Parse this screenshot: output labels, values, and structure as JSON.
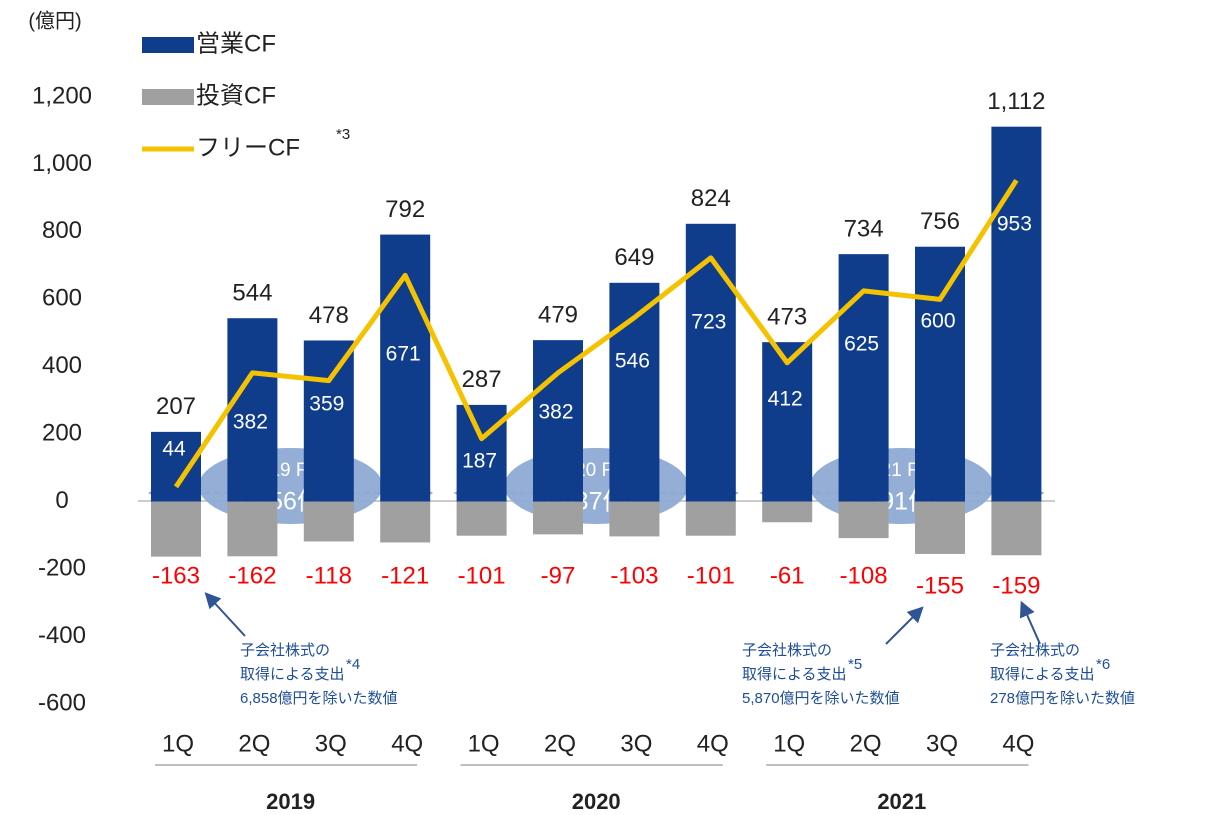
{
  "chart_data": {
    "type": "bar_line",
    "unit_label": "(億円)",
    "categories": [
      "1Q",
      "2Q",
      "3Q",
      "4Q",
      "1Q",
      "2Q",
      "3Q",
      "4Q",
      "1Q",
      "2Q",
      "3Q",
      "4Q"
    ],
    "groups": [
      "2019",
      "2020",
      "2021"
    ],
    "series": [
      {
        "name": "営業CF",
        "color": "#0f3d8c",
        "kind": "bar",
        "values": [
          207,
          544,
          478,
          792,
          287,
          479,
          649,
          824,
          473,
          734,
          756,
          1112
        ],
        "value_labels": [
          "207",
          "544",
          "478",
          "792",
          "287",
          "479",
          "649",
          "824",
          "473",
          "734",
          "756",
          "1,112"
        ]
      },
      {
        "name": "投資CF",
        "color": "#a0a0a0",
        "kind": "bar",
        "label_color": "#ff0000",
        "values": [
          -163,
          -162,
          -118,
          -121,
          -101,
          -97,
          -103,
          -101,
          -61,
          -108,
          -155,
          -159
        ]
      },
      {
        "name": "フリーCF",
        "note": "*3",
        "color": "#f5c200",
        "kind": "line",
        "label_color": "#ffffff",
        "values": [
          44,
          382,
          359,
          671,
          187,
          382,
          546,
          723,
          412,
          625,
          600,
          953
        ]
      }
    ],
    "ylim": [
      -600,
      1200
    ],
    "yticks": [
      -600,
      -400,
      -200,
      0,
      200,
      400,
      600,
      800,
      {
        "value": 1000,
        "label": "1,000"
      },
      {
        "value": 1200,
        "label": "1,200"
      }
    ],
    "fcf_totals": [
      {
        "title": "2019 FCF",
        "value": "1,456億円"
      },
      {
        "title": "2020 FCF",
        "value": "1,837億円"
      },
      {
        "title": "2021 FCF",
        "value": "2,591億円"
      }
    ],
    "annotations": [
      {
        "lines": [
          "子会社株式の",
          "取得による支出",
          "6,858億円を除いた数値"
        ],
        "note": "*4"
      },
      {
        "lines": [
          "子会社株式の",
          "取得による支出",
          "5,870億円を除いた数値"
        ],
        "note": "*5"
      },
      {
        "lines": [
          "子会社株式の",
          "取得による支出",
          "278億円を除いた数値"
        ],
        "note": "*6"
      }
    ]
  }
}
